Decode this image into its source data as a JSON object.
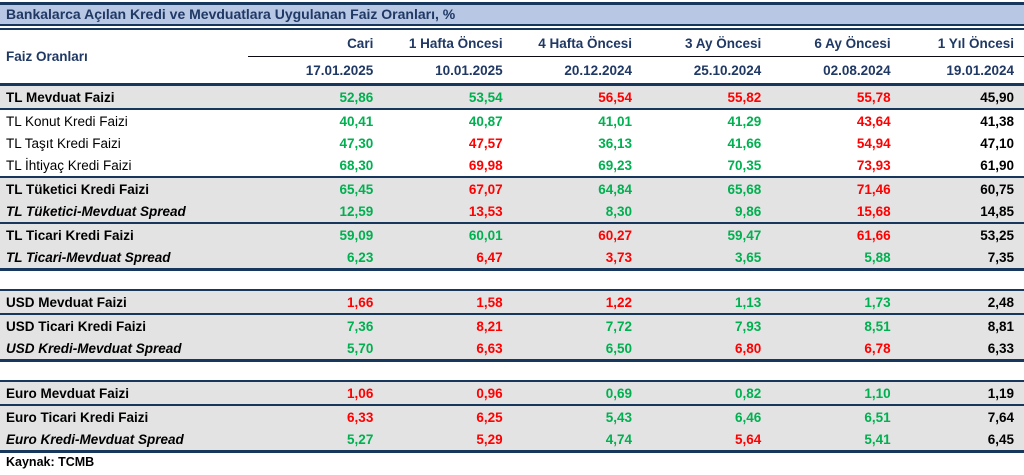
{
  "title": "Bankalarca Açılan Kredi ve Mevduatlara Uygulanan Faiz Oranları, %",
  "footer": "Kaynak: TCMB",
  "colors": {
    "green": "#00b050",
    "red": "#ff0000",
    "black": "#000000",
    "navy_text": "#1f3864",
    "border_navy": "#17375d",
    "title_bg": "#b7c7e4",
    "row_bg_gray": "#e3e3e3"
  },
  "header": {
    "label": "Faiz Oranları",
    "columns": [
      {
        "period": "Cari",
        "date": "17.01.2025"
      },
      {
        "period": "1 Hafta Öncesi",
        "date": "10.01.2025"
      },
      {
        "period": "4 Hafta Öncesi",
        "date": "20.12.2024"
      },
      {
        "period": "3 Ay Öncesi",
        "date": "25.10.2024"
      },
      {
        "period": "6 Ay Öncesi",
        "date": "02.08.2024"
      },
      {
        "period": "1 Yıl Öncesi",
        "date": "19.01.2024"
      }
    ]
  },
  "rows": [
    {
      "type": "row",
      "label": "TL Mevduat Faizi",
      "emphasis": "bold",
      "bg": "gray",
      "border_after": "thin",
      "values": [
        "52,86",
        "53,54",
        "56,54",
        "55,82",
        "55,78",
        "45,90"
      ],
      "value_colors": [
        "green",
        "green",
        "red",
        "red",
        "red",
        "black"
      ]
    },
    {
      "type": "row",
      "label": "TL Konut Kredi Faizi",
      "emphasis": "regular",
      "bg": "white",
      "border_after": "none",
      "values": [
        "40,41",
        "40,87",
        "41,01",
        "41,29",
        "43,64",
        "41,38"
      ],
      "value_colors": [
        "green",
        "green",
        "green",
        "green",
        "red",
        "black"
      ]
    },
    {
      "type": "row",
      "label": "TL Taşıt Kredi Faizi",
      "emphasis": "regular",
      "bg": "white",
      "border_after": "none",
      "values": [
        "47,30",
        "47,57",
        "36,13",
        "41,66",
        "54,94",
        "47,10"
      ],
      "value_colors": [
        "green",
        "red",
        "green",
        "green",
        "red",
        "black"
      ]
    },
    {
      "type": "row",
      "label": "TL İhtiyaç Kredi Faizi",
      "emphasis": "regular",
      "bg": "white",
      "border_after": "thin",
      "values": [
        "68,30",
        "69,98",
        "69,23",
        "70,35",
        "73,93",
        "61,90"
      ],
      "value_colors": [
        "green",
        "red",
        "green",
        "green",
        "red",
        "black"
      ]
    },
    {
      "type": "row",
      "label": "TL Tüketici Kredi Faizi",
      "emphasis": "bold",
      "bg": "gray",
      "border_after": "none",
      "values": [
        "65,45",
        "67,07",
        "64,84",
        "65,68",
        "71,46",
        "60,75"
      ],
      "value_colors": [
        "green",
        "red",
        "green",
        "green",
        "red",
        "black"
      ]
    },
    {
      "type": "row",
      "label": "TL Tüketici-Mevduat Spread",
      "emphasis": "bold-italic",
      "bg": "gray",
      "border_after": "thin",
      "values": [
        "12,59",
        "13,53",
        "8,30",
        "9,86",
        "15,68",
        "14,85"
      ],
      "value_colors": [
        "green",
        "red",
        "green",
        "green",
        "red",
        "black"
      ]
    },
    {
      "type": "row",
      "label": "TL Ticari Kredi Faizi",
      "emphasis": "bold",
      "bg": "gray",
      "border_after": "none",
      "values": [
        "59,09",
        "60,01",
        "60,27",
        "59,47",
        "61,66",
        "53,25"
      ],
      "value_colors": [
        "green",
        "green",
        "red",
        "green",
        "red",
        "black"
      ]
    },
    {
      "type": "row",
      "label": "TL Ticari-Mevduat Spread",
      "emphasis": "bold-italic",
      "bg": "gray",
      "border_after": "thick",
      "values": [
        "6,23",
        "6,47",
        "3,73",
        "3,65",
        "5,88",
        "7,35"
      ],
      "value_colors": [
        "green",
        "red",
        "red",
        "green",
        "green",
        "black"
      ]
    },
    {
      "type": "gap"
    },
    {
      "type": "row",
      "label": "USD Mevduat Faizi",
      "emphasis": "bold",
      "bg": "gray",
      "border_after": "thin",
      "values": [
        "1,66",
        "1,58",
        "1,22",
        "1,13",
        "1,73",
        "2,48"
      ],
      "value_colors": [
        "red",
        "red",
        "red",
        "green",
        "green",
        "black"
      ]
    },
    {
      "type": "row",
      "label": "USD Ticari Kredi Faizi",
      "emphasis": "bold",
      "bg": "gray",
      "border_after": "none",
      "values": [
        "7,36",
        "8,21",
        "7,72",
        "7,93",
        "8,51",
        "8,81"
      ],
      "value_colors": [
        "green",
        "red",
        "green",
        "green",
        "green",
        "black"
      ]
    },
    {
      "type": "row",
      "label": "USD Kredi-Mevduat Spread",
      "emphasis": "bold-italic",
      "bg": "gray",
      "border_after": "thick",
      "values": [
        "5,70",
        "6,63",
        "6,50",
        "6,80",
        "6,78",
        "6,33"
      ],
      "value_colors": [
        "green",
        "red",
        "green",
        "red",
        "red",
        "black"
      ]
    },
    {
      "type": "gap"
    },
    {
      "type": "row",
      "label": "Euro Mevduat Faizi",
      "emphasis": "bold",
      "bg": "gray",
      "border_after": "thin",
      "values": [
        "1,06",
        "0,96",
        "0,69",
        "0,82",
        "1,10",
        "1,19"
      ],
      "value_colors": [
        "red",
        "red",
        "green",
        "green",
        "green",
        "black"
      ]
    },
    {
      "type": "row",
      "label": "Euro Ticari Kredi Faizi",
      "emphasis": "bold",
      "bg": "gray",
      "border_after": "none",
      "values": [
        "6,33",
        "6,25",
        "5,43",
        "6,46",
        "6,51",
        "7,64"
      ],
      "value_colors": [
        "red",
        "red",
        "green",
        "green",
        "green",
        "black"
      ]
    },
    {
      "type": "row",
      "label": "Euro Kredi-Mevduat Spread",
      "emphasis": "bold-italic",
      "bg": "gray",
      "border_after": "thick",
      "values": [
        "5,27",
        "5,29",
        "4,74",
        "5,64",
        "5,41",
        "6,45"
      ],
      "value_colors": [
        "green",
        "red",
        "green",
        "red",
        "green",
        "black"
      ]
    }
  ],
  "chart_data": {
    "type": "table",
    "title": "Bankalarca Açılan Kredi ve Mevduatlara Uygulanan Faiz Oranları, %",
    "columns": [
      "Faiz Oranları",
      "Cari (17.01.2025)",
      "1 Hafta Öncesi (10.01.2025)",
      "4 Hafta Öncesi (20.12.2024)",
      "3 Ay Öncesi (25.10.2024)",
      "6 Ay Öncesi (02.08.2024)",
      "1 Yıl Öncesi (19.01.2024)"
    ],
    "rows": [
      [
        "TL Mevduat Faizi",
        52.86,
        53.54,
        56.54,
        55.82,
        55.78,
        45.9
      ],
      [
        "TL Konut Kredi Faizi",
        40.41,
        40.87,
        41.01,
        41.29,
        43.64,
        41.38
      ],
      [
        "TL Taşıt Kredi Faizi",
        47.3,
        47.57,
        36.13,
        41.66,
        54.94,
        47.1
      ],
      [
        "TL İhtiyaç Kredi Faizi",
        68.3,
        69.98,
        69.23,
        70.35,
        73.93,
        61.9
      ],
      [
        "TL Tüketici Kredi Faizi",
        65.45,
        67.07,
        64.84,
        65.68,
        71.46,
        60.75
      ],
      [
        "TL Tüketici-Mevduat Spread",
        12.59,
        13.53,
        8.3,
        9.86,
        15.68,
        14.85
      ],
      [
        "TL Ticari Kredi Faizi",
        59.09,
        60.01,
        60.27,
        59.47,
        61.66,
        53.25
      ],
      [
        "TL Ticari-Mevduat Spread",
        6.23,
        6.47,
        3.73,
        3.65,
        5.88,
        7.35
      ],
      [
        "USD Mevduat Faizi",
        1.66,
        1.58,
        1.22,
        1.13,
        1.73,
        2.48
      ],
      [
        "USD Ticari Kredi Faizi",
        7.36,
        8.21,
        7.72,
        7.93,
        8.51,
        8.81
      ],
      [
        "USD Kredi-Mevduat Spread",
        5.7,
        6.63,
        6.5,
        6.8,
        6.78,
        6.33
      ],
      [
        "Euro Mevduat Faizi",
        1.06,
        0.96,
        0.69,
        0.82,
        1.1,
        1.19
      ],
      [
        "Euro Ticari Kredi Faizi",
        6.33,
        6.25,
        5.43,
        6.46,
        6.51,
        7.64
      ],
      [
        "Euro Kredi-Mevduat Spread",
        5.27,
        5.29,
        4.74,
        5.64,
        5.41,
        6.45
      ]
    ],
    "value_color_semantics": "green = decline vs current favorable period, red = increase, black = 1-year-ago reference",
    "source_note": "Kaynak: TCMB"
  }
}
